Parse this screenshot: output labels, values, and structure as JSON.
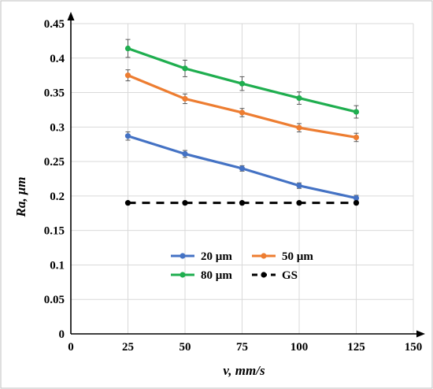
{
  "chart_data": {
    "type": "line",
    "title": "",
    "xlabel": "v, mm/s",
    "ylabel": "Ra, μm",
    "xlim": [
      0,
      150
    ],
    "ylim": [
      0,
      0.45
    ],
    "xticks": [
      "0",
      "25",
      "50",
      "75",
      "100",
      "125",
      "150"
    ],
    "yticks": [
      "0",
      "0.05",
      "0.1",
      "0.15",
      "0.2",
      "0.25",
      "0.3",
      "0.35",
      "0.4",
      "0.45"
    ],
    "grid": "horizontal and vertical",
    "legend_position": "center-bottom",
    "x": [
      25,
      50,
      75,
      100,
      125
    ],
    "series": [
      {
        "name": "20 µm",
        "color": "#4472c4",
        "dashed": false,
        "values": [
          0.287,
          0.261,
          0.24,
          0.215,
          0.197
        ],
        "error": [
          0.006,
          0.005,
          0.004,
          0.004,
          0.004
        ]
      },
      {
        "name": "50 µm",
        "color": "#ed7d31",
        "dashed": false,
        "values": [
          0.375,
          0.341,
          0.321,
          0.299,
          0.285
        ],
        "error": [
          0.008,
          0.007,
          0.006,
          0.006,
          0.006
        ]
      },
      {
        "name": "80 µm",
        "color": "#1fae4f",
        "dashed": false,
        "values": [
          0.414,
          0.385,
          0.363,
          0.342,
          0.322
        ],
        "error": [
          0.013,
          0.012,
          0.01,
          0.009,
          0.009
        ]
      },
      {
        "name": "GS",
        "color": "#000000",
        "dashed": true,
        "values": [
          0.19,
          0.19,
          0.19,
          0.19,
          0.19
        ],
        "error": [
          0,
          0,
          0,
          0,
          0
        ]
      }
    ]
  }
}
